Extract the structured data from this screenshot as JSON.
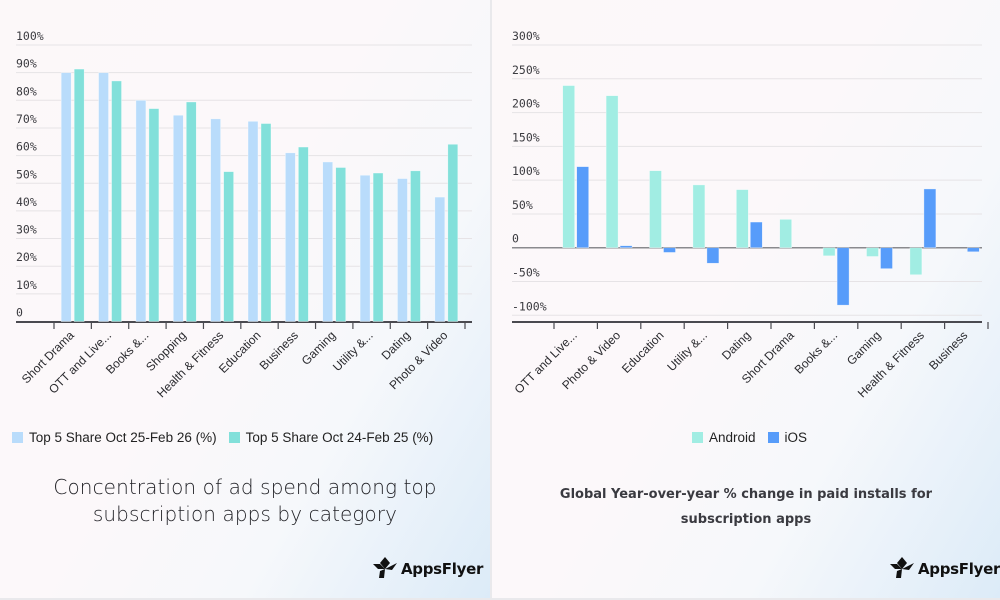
{
  "chart_data": [
    {
      "type": "bar",
      "title": "Concentration of ad spend among top subscription apps by category",
      "xlabel": "",
      "ylabel": "",
      "ylim": [
        0,
        100
      ],
      "yticks": [
        "0",
        "10%",
        "20%",
        "30%",
        "40%",
        "50%",
        "60%",
        "70%",
        "80%",
        "90%",
        "100%"
      ],
      "grid": true,
      "legend_position": "bottom",
      "categories": [
        "Short Drama",
        "OTT and Live...",
        "Books &...",
        "Shopping",
        "Health & Fitness",
        "Education",
        "Business",
        "Gaming",
        "Utility &...",
        "Dating",
        "Photo & Video"
      ],
      "series": [
        {
          "name": "Top 5 Share Oct 25-Feb 26 (%)",
          "color": "#b9dcfb",
          "values": [
            90,
            90,
            80,
            74.6,
            73.3,
            72.4,
            61,
            57.7,
            52.9,
            51.7,
            45
          ]
        },
        {
          "name": "Top 5 Share Oct 24-Feb 25 (%)",
          "color": "#82e0da",
          "values": [
            91.3,
            87,
            77,
            79.4,
            54.2,
            71.6,
            63.1,
            55.7,
            53.7,
            54.5,
            64.1
          ]
        }
      ]
    },
    {
      "type": "bar",
      "title": "Global Year-over-year % change in paid installs for subscription apps",
      "xlabel": "",
      "ylabel": "",
      "ylim": [
        -100,
        300
      ],
      "yticks": [
        "-100%",
        "-50%",
        "0",
        "50%",
        "100%",
        "150%",
        "200%",
        "250%",
        "300%"
      ],
      "grid": true,
      "legend_position": "bottom",
      "categories": [
        "OTT and Live...",
        "Photo & Video",
        "Education",
        "Utility &...",
        "Dating",
        "Short Drama",
        "Books &...",
        "Gaming",
        "Health & Fitness",
        "Business"
      ],
      "series": [
        {
          "name": "Android",
          "color": "#a1ede3",
          "values": [
            240,
            225,
            114,
            93,
            86,
            42,
            -12,
            -13,
            -40,
            0
          ]
        },
        {
          "name": "iOS",
          "color": "#579cfa",
          "values": [
            120,
            3,
            -7,
            -23,
            38,
            null,
            -85,
            -31,
            87,
            -6
          ]
        }
      ]
    }
  ],
  "left_panel": {
    "caption_line1": "Concentration of ad spend among top",
    "caption_line2": "subscription apps by category",
    "logo_text": "AppsFlyer"
  },
  "right_panel": {
    "caption_line1": "Global Year-over-year % change in paid installs for",
    "caption_line2": "subscription apps",
    "logo_text": "AppsFlyer"
  }
}
